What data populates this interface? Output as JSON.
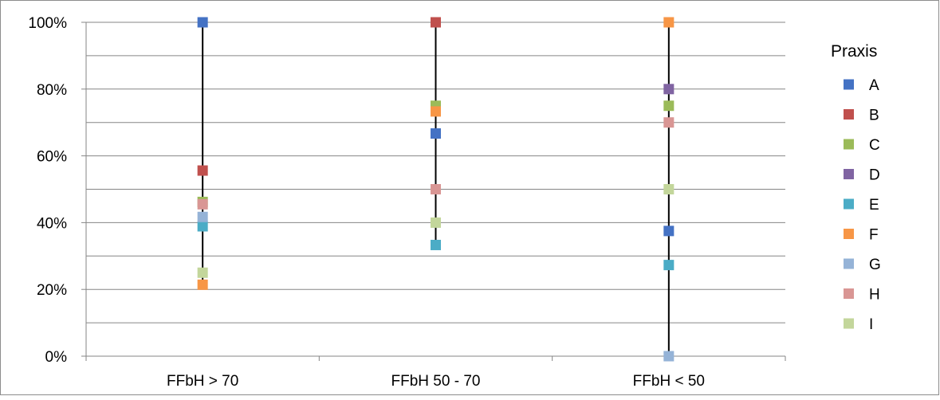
{
  "chart_data": {
    "type": "scatter",
    "title": "",
    "xlabel": "",
    "ylabel": "",
    "categories": [
      "FFbH > 70",
      "FFbH 50 - 70",
      "FFbH < 50"
    ],
    "y_ticks": [
      "0%",
      "20%",
      "40%",
      "60%",
      "80%",
      "100%"
    ],
    "ylim": [
      0,
      100
    ],
    "y_major_step": 20,
    "y_minor_step": 10,
    "grid": true,
    "legend_title": "Praxis",
    "legend_position": "right",
    "range_lines": true,
    "series": [
      {
        "name": "A",
        "color": "#4472C4",
        "values": [
          100,
          66.7,
          37.5
        ]
      },
      {
        "name": "B",
        "color": "#C0504D",
        "values": [
          55.6,
          100,
          null
        ]
      },
      {
        "name": "C",
        "color": "#9BBB59",
        "values": [
          46.2,
          75,
          75
        ]
      },
      {
        "name": "D",
        "color": "#8064A2",
        "values": [
          null,
          null,
          80
        ]
      },
      {
        "name": "E",
        "color": "#4BACC6",
        "values": [
          38.9,
          33.3,
          27.3
        ]
      },
      {
        "name": "F",
        "color": "#F79646",
        "values": [
          21.4,
          73.3,
          100
        ]
      },
      {
        "name": "G",
        "color": "#95B3D7",
        "values": [
          41.7,
          null,
          0
        ]
      },
      {
        "name": "H",
        "color": "#D99694",
        "values": [
          45.5,
          50,
          70
        ]
      },
      {
        "name": "I",
        "color": "#C3D69B",
        "values": [
          25,
          40,
          50
        ]
      }
    ]
  }
}
